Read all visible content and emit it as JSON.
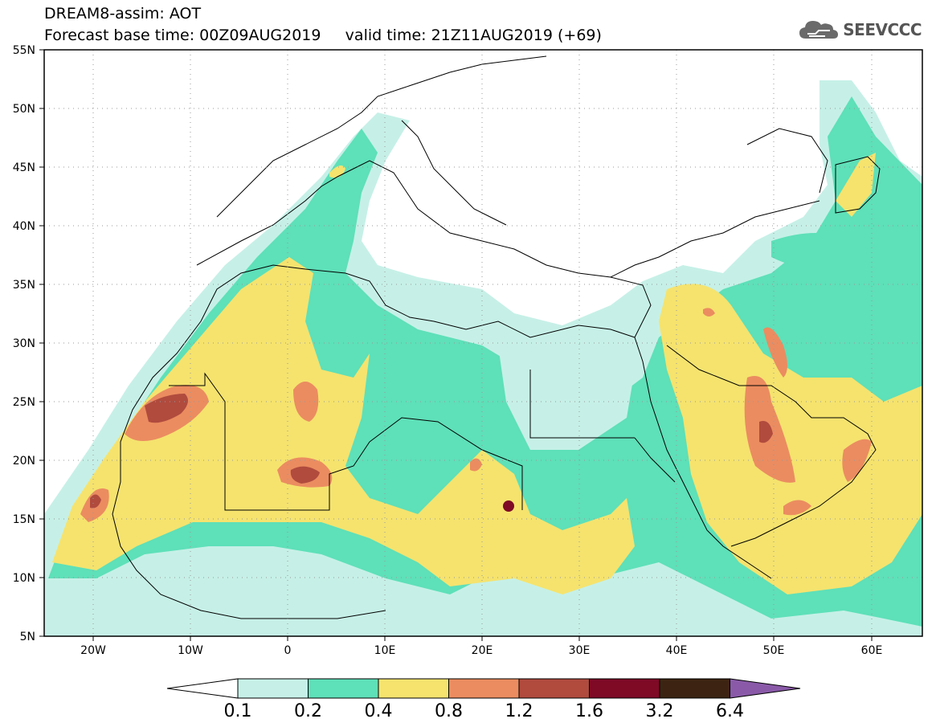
{
  "header": {
    "title_line1": "DREAM8-assim: AOT",
    "title_line2": "Forecast base time: 00Z09AUG2019     valid time: 21Z11AUG2019 (+69)",
    "logo_text": "SEEVCCC",
    "logo_icon": "cloud-icon"
  },
  "map": {
    "lon_range": [
      -25,
      65
    ],
    "lat_range": [
      5,
      55
    ],
    "y_ticks": [
      "55N",
      "50N",
      "45N",
      "40N",
      "35N",
      "30N",
      "25N",
      "20N",
      "15N",
      "10N",
      "5N"
    ],
    "x_ticks": [
      "20W",
      "10W",
      "0",
      "10E",
      "20E",
      "30E",
      "40E",
      "50E",
      "60E"
    ],
    "background": "#ffffff",
    "gridline_style": "dotted"
  },
  "colorbar": {
    "levels": [
      "0.1",
      "0.2",
      "0.4",
      "0.8",
      "1.2",
      "1.6",
      "3.2",
      "6.4"
    ],
    "colors": [
      "#c6f0e7",
      "#5ee0b8",
      "#f5e36e",
      "#eb8c60",
      "#b04b3e",
      "#7e0a26",
      "#3d2412",
      "#8a5aa8"
    ]
  }
}
